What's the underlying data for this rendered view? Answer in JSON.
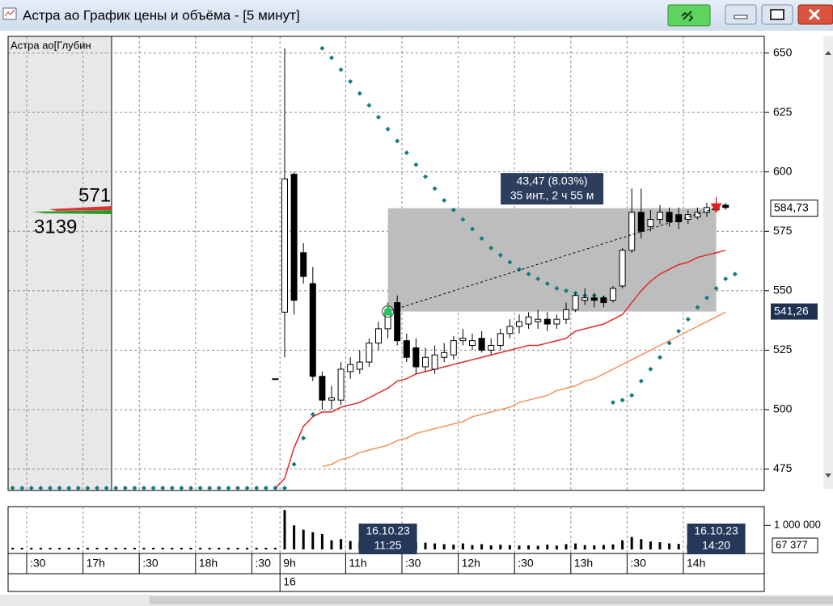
{
  "window": {
    "title": "Астра ао График цены и объёма - [5 минут]"
  },
  "depth": {
    "title": "Астра ао[Глубин",
    "ask": 571,
    "bid": 3139
  },
  "chart_data": [
    {
      "type": "candlestick",
      "categories": [
        null,
        null,
        ":30",
        null,
        null,
        null,
        null,
        null,
        "17h",
        null,
        null,
        null,
        null,
        null,
        ":30",
        null,
        null,
        null,
        null,
        null,
        "18h",
        null,
        null,
        null,
        null,
        null,
        ":30",
        null,
        null,
        "9h",
        null,
        null,
        null,
        null,
        null,
        null,
        "11h",
        null,
        null,
        null,
        null,
        null,
        ":30",
        null,
        null,
        null,
        null,
        null,
        "12h",
        null,
        null,
        null,
        null,
        null,
        ":30",
        null,
        null,
        null,
        null,
        null,
        "13h",
        null,
        null,
        null,
        null,
        null,
        ":30",
        null,
        null,
        null,
        null,
        null,
        "14h",
        null,
        null,
        null,
        null,
        null,
        null,
        null
      ],
      "days": [
        {
          "label": "16",
          "index": 29
        }
      ],
      "open": [
        null,
        null,
        null,
        null,
        null,
        null,
        null,
        null,
        null,
        null,
        null,
        null,
        null,
        null,
        null,
        null,
        null,
        null,
        null,
        null,
        null,
        null,
        null,
        null,
        null,
        null,
        null,
        null,
        513,
        541,
        599,
        566,
        553,
        514,
        504,
        504,
        516,
        517,
        520,
        528,
        534,
        545,
        529,
        526,
        518,
        517,
        522,
        523,
        529,
        527,
        530,
        525,
        527,
        532,
        535,
        536,
        537,
        538,
        536,
        538,
        542,
        546,
        547,
        547,
        546,
        552,
        567,
        583,
        577,
        580,
        583,
        582,
        580,
        581,
        583,
        584,
        586,
        null,
        null,
        null
      ],
      "high": [
        null,
        null,
        null,
        null,
        null,
        null,
        null,
        null,
        null,
        null,
        null,
        null,
        null,
        null,
        null,
        null,
        null,
        null,
        null,
        null,
        null,
        null,
        null,
        null,
        null,
        null,
        null,
        null,
        513,
        652,
        600,
        570,
        560,
        516,
        510,
        520,
        522,
        525,
        530,
        537,
        545,
        548,
        532,
        530,
        526,
        527,
        528,
        531,
        534,
        532,
        533,
        530,
        534,
        538,
        540,
        541,
        542,
        541,
        540,
        545,
        549,
        551,
        549,
        548,
        552,
        568,
        593,
        593,
        584,
        586,
        585,
        585,
        584,
        585,
        587,
        589,
        587,
        null,
        null,
        null
      ],
      "low": [
        null,
        null,
        null,
        null,
        null,
        null,
        null,
        null,
        null,
        null,
        null,
        null,
        null,
        null,
        null,
        null,
        null,
        null,
        null,
        null,
        null,
        null,
        null,
        null,
        null,
        null,
        null,
        null,
        513,
        522,
        540,
        553,
        512,
        500,
        500,
        502,
        513,
        515,
        518,
        525,
        530,
        527,
        520,
        515,
        516,
        515,
        520,
        521,
        527,
        525,
        524,
        523,
        525,
        530,
        532,
        534,
        534,
        533,
        534,
        536,
        541,
        544,
        543,
        543,
        545,
        551,
        566,
        572,
        575,
        578,
        577,
        576,
        578,
        580,
        581,
        583,
        584,
        null,
        null,
        null
      ],
      "close": [
        null,
        null,
        null,
        null,
        null,
        null,
        null,
        null,
        null,
        null,
        null,
        null,
        null,
        null,
        null,
        null,
        null,
        null,
        null,
        null,
        null,
        null,
        null,
        null,
        null,
        null,
        null,
        null,
        513,
        597,
        546,
        556,
        514,
        504,
        505,
        517,
        519,
        520,
        528,
        534,
        542,
        529,
        522,
        518,
        522,
        523,
        524,
        529,
        530,
        529,
        525,
        527,
        532,
        535,
        537,
        539,
        538,
        536,
        538,
        542,
        548,
        547,
        546,
        545,
        551,
        567,
        583,
        575,
        580,
        583,
        579,
        579,
        582,
        583,
        585,
        586,
        585,
        null,
        null,
        null
      ],
      "lines": [
        {
          "color": "#e02a2a",
          "values": [
            null,
            null,
            null,
            null,
            null,
            null,
            null,
            null,
            null,
            null,
            null,
            null,
            null,
            null,
            null,
            null,
            null,
            null,
            null,
            null,
            null,
            null,
            null,
            null,
            null,
            null,
            null,
            null,
            467,
            471,
            484,
            493,
            497,
            499,
            499,
            501,
            502,
            503,
            505,
            507,
            509,
            512,
            513,
            515,
            516,
            517,
            518,
            519,
            520,
            521,
            522,
            523,
            524,
            525,
            526,
            527,
            527,
            528,
            529,
            530,
            533,
            534,
            535,
            536,
            538,
            540,
            545,
            550,
            554,
            557,
            559,
            561,
            562,
            564,
            565,
            566,
            567,
            null,
            null,
            null
          ]
        },
        {
          "color": "#f4925a",
          "values": [
            null,
            null,
            null,
            null,
            null,
            null,
            null,
            null,
            null,
            null,
            null,
            null,
            null,
            null,
            null,
            null,
            null,
            null,
            null,
            null,
            null,
            null,
            null,
            null,
            null,
            null,
            null,
            null,
            null,
            null,
            null,
            null,
            null,
            476,
            477,
            479,
            480,
            482,
            483,
            484,
            485,
            487,
            488,
            490,
            491,
            492,
            493,
            494,
            495,
            497,
            498,
            499,
            500,
            501,
            503,
            504,
            505,
            506,
            508,
            509,
            510,
            512,
            513,
            515,
            517,
            519,
            521,
            523,
            525,
            527,
            529,
            531,
            533,
            535,
            537,
            539,
            541,
            null,
            null,
            null
          ]
        }
      ],
      "dots": {
        "color": "#137c80",
        "values": [
          467,
          467,
          467,
          467,
          467,
          467,
          467,
          467,
          467,
          467,
          467,
          467,
          467,
          467,
          467,
          467,
          467,
          467,
          467,
          467,
          467,
          467,
          467,
          467,
          467,
          467,
          467,
          467,
          467,
          467,
          477,
          488,
          498,
          652,
          648,
          643,
          638,
          633,
          628,
          623,
          618,
          613,
          608,
          603,
          598,
          593,
          588,
          584,
          580,
          576,
          572,
          568,
          565,
          562,
          559,
          557,
          555,
          553,
          551,
          550,
          549,
          548,
          548,
          547,
          503,
          504,
          506,
          512,
          517,
          522,
          528,
          533,
          538,
          543,
          547,
          551,
          555,
          557,
          null,
          null
        ]
      },
      "measure": {
        "start_index": 40,
        "end_index": 75,
        "low": {
          "value": 541.26,
          "label": "541,26"
        },
        "high": {
          "value": 584.73,
          "label": "584,73"
        },
        "text": "43,47 (8.03%)",
        "subtext": "35 инт., 2 ч 55 м"
      },
      "ylim": [
        466,
        657
      ],
      "yticks": [
        475,
        500,
        525,
        550,
        575,
        600,
        625,
        650
      ],
      "grid": true
    },
    {
      "type": "bar",
      "color": "#000000",
      "values": [
        70000,
        70000,
        70000,
        70000,
        70000,
        70000,
        70000,
        70000,
        70000,
        70000,
        70000,
        70000,
        70000,
        70000,
        70000,
        70000,
        70000,
        70000,
        70000,
        70000,
        70000,
        70000,
        70000,
        70000,
        70000,
        70000,
        70000,
        70000,
        70000,
        1640000,
        1000000,
        820000,
        720000,
        640000,
        380000,
        430000,
        350000,
        320000,
        300000,
        310000,
        360000,
        520000,
        420000,
        300000,
        280000,
        250000,
        220000,
        200000,
        250000,
        180000,
        220000,
        170000,
        200000,
        180000,
        160000,
        170000,
        150000,
        200000,
        160000,
        220000,
        250000,
        180000,
        170000,
        190000,
        210000,
        380000,
        520000,
        430000,
        330000,
        300000,
        250000,
        230000,
        180000,
        220000,
        160000,
        190000,
        67377,
        null,
        null,
        null
      ],
      "last": {
        "value": 67377,
        "label": "67 377"
      },
      "markers": [
        {
          "date": "16.10.23",
          "time": "11:25",
          "index": 40
        },
        {
          "date": "16.10.23",
          "time": "14:20",
          "index": 75
        }
      ],
      "ylim": [
        0,
        1750000
      ],
      "yticks": [
        {
          "value": 1000000,
          "label": "1 000 000"
        }
      ],
      "grid": true
    }
  ]
}
